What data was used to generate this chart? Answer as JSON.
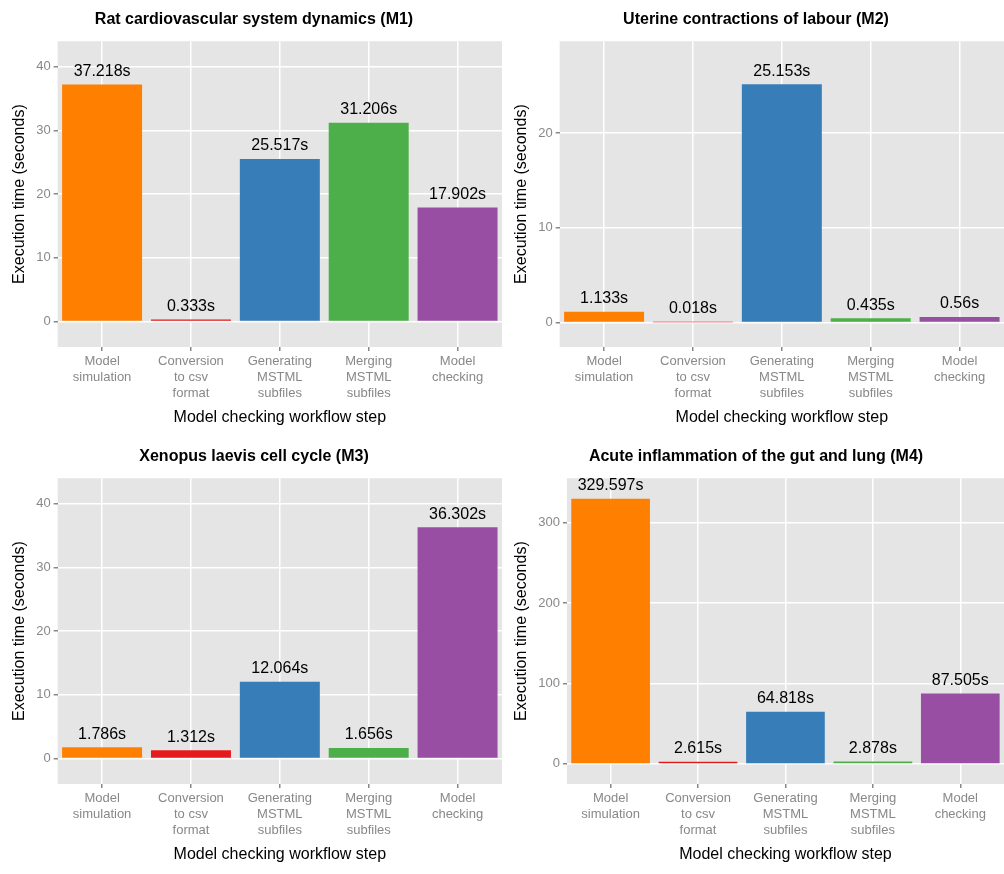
{
  "chart_data": [
    {
      "type": "bar",
      "title": "Rat cardiovascular system dynamics (M1)",
      "xlabel": "Model checking workflow step",
      "ylabel": "Execution time (seconds)",
      "categories": [
        "Model\nsimulation",
        "Conversion\nto csv\nformat",
        "Generating\nMSTML\nsubfiles",
        "Merging\nMSTML\nsubfiles",
        "Model\nchecking"
      ],
      "values": [
        37.218,
        0.333,
        25.517,
        31.206,
        17.902
      ],
      "colors": [
        "#ff7f00",
        "#e41a1c",
        "#377eb8",
        "#4daf4a",
        "#984ea3"
      ],
      "value_labels": [
        "37.218s",
        "0.333s",
        "25.517s",
        "31.206s",
        "17.902s"
      ],
      "ylim": [
        -4,
        44
      ],
      "yticks": [
        0,
        10,
        20,
        30,
        40
      ],
      "grid": true
    },
    {
      "type": "bar",
      "title": "Uterine contractions of labour (M2)",
      "xlabel": "Model checking workflow step",
      "ylabel": "Execution time (seconds)",
      "categories": [
        "Model\nsimulation",
        "Conversion\nto csv\nformat",
        "Generating\nMSTML\nsubfiles",
        "Merging\nMSTML\nsubfiles",
        "Model\nchecking"
      ],
      "values": [
        1.133,
        0.018,
        25.153,
        0.435,
        0.56
      ],
      "colors": [
        "#ff7f00",
        "#e41a1c",
        "#377eb8",
        "#4daf4a",
        "#984ea3"
      ],
      "value_labels": [
        "1.133s",
        "0.018s",
        "25.153s",
        "0.435s",
        "0.56s"
      ],
      "ylim": [
        -2.6,
        29.7
      ],
      "yticks": [
        0,
        10,
        20
      ],
      "grid": true
    },
    {
      "type": "bar",
      "title": "Xenopus laevis cell cycle (M3)",
      "xlabel": "Model checking workflow step",
      "ylabel": "Execution time (seconds)",
      "categories": [
        "Model\nsimulation",
        "Conversion\nto csv\nformat",
        "Generating\nMSTML\nsubfiles",
        "Merging\nMSTML\nsubfiles",
        "Model\nchecking"
      ],
      "values": [
        1.786,
        1.312,
        12.064,
        1.656,
        36.302
      ],
      "colors": [
        "#ff7f00",
        "#e41a1c",
        "#377eb8",
        "#4daf4a",
        "#984ea3"
      ],
      "value_labels": [
        "1.786s",
        "1.312s",
        "12.064s",
        "1.656s",
        "36.302s"
      ],
      "ylim": [
        -4,
        44
      ],
      "yticks": [
        0,
        10,
        20,
        30,
        40
      ],
      "grid": true
    },
    {
      "type": "bar",
      "title": "Acute inflammation of the gut and lung (M4)",
      "xlabel": "Model checking workflow step",
      "ylabel": "Execution time (seconds)",
      "categories": [
        "Model\nsimulation",
        "Conversion\nto csv\nformat",
        "Generating\nMSTML\nsubfiles",
        "Merging\nMSTML\nsubfiles",
        "Model\nchecking"
      ],
      "values": [
        329.597,
        2.615,
        64.818,
        2.878,
        87.505
      ],
      "colors": [
        "#ff7f00",
        "#e41a1c",
        "#377eb8",
        "#4daf4a",
        "#984ea3"
      ],
      "value_labels": [
        "329.597s",
        "2.615s",
        "64.818s",
        "2.878s",
        "87.505s"
      ],
      "ylim": [
        -25,
        355
      ],
      "yticks": [
        0,
        100,
        200,
        300
      ],
      "grid": true
    }
  ]
}
